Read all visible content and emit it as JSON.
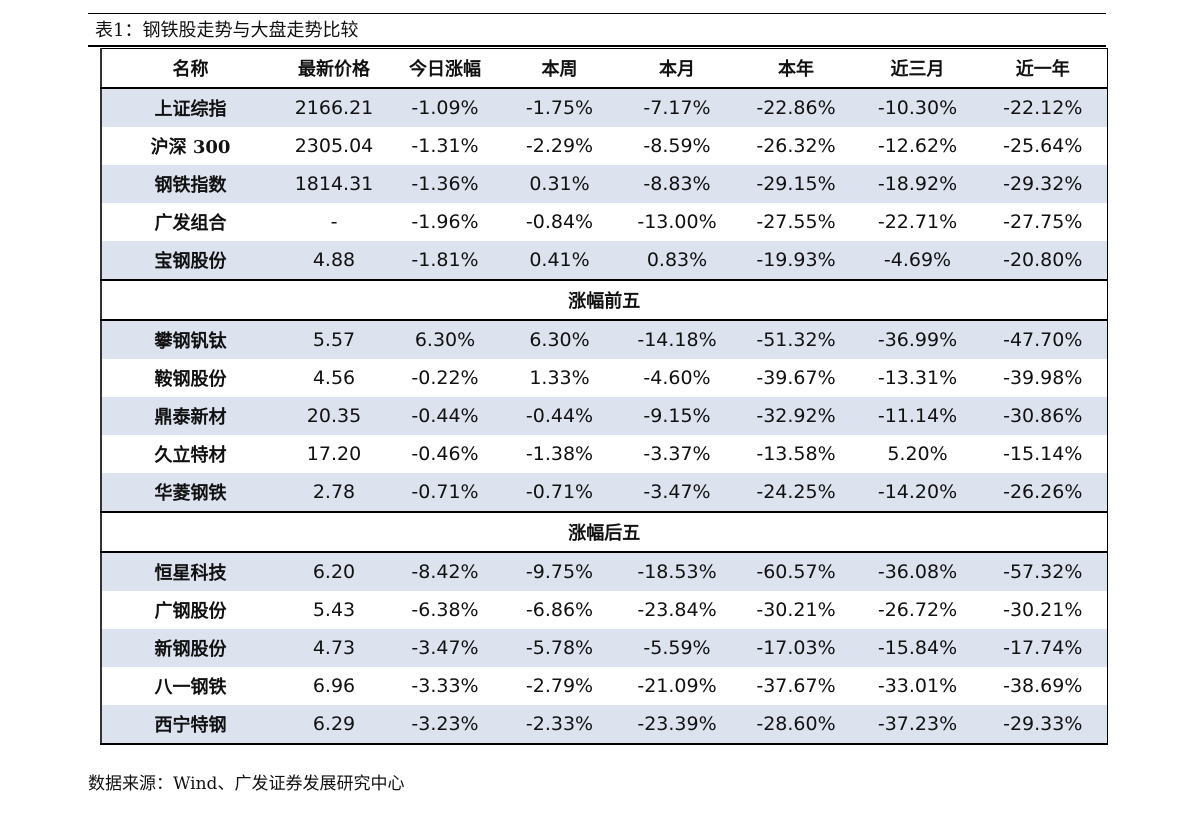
{
  "title": "表1：钢铁股走势与大盘走势比较",
  "table": {
    "headers": [
      "名称",
      "最新价格",
      "今日涨幅",
      "本周",
      "本月",
      "本年",
      "近三月",
      "近一年"
    ],
    "sections": [
      {
        "rows": [
          [
            "上证综指",
            "2166.21",
            "-1.09%",
            "-1.75%",
            "-7.17%",
            "-22.86%",
            "-10.30%",
            "-22.12%"
          ],
          [
            "沪深 300",
            "2305.04",
            "-1.31%",
            "-2.29%",
            "-8.59%",
            "-26.32%",
            "-12.62%",
            "-25.64%"
          ],
          [
            "钢铁指数",
            "1814.31",
            "-1.36%",
            "0.31%",
            "-8.83%",
            "-29.15%",
            "-18.92%",
            "-29.32%"
          ],
          [
            "广发组合",
            "-",
            "-1.96%",
            "-0.84%",
            "-13.00%",
            "-27.55%",
            "-22.71%",
            "-27.75%"
          ],
          [
            "宝钢股份",
            "4.88",
            "-1.81%",
            "0.41%",
            "0.83%",
            "-19.93%",
            "-4.69%",
            "-20.80%"
          ]
        ]
      },
      {
        "label": "涨幅前五",
        "rows": [
          [
            "攀钢钒钛",
            "5.57",
            "6.30%",
            "6.30%",
            "-14.18%",
            "-51.32%",
            "-36.99%",
            "-47.70%"
          ],
          [
            "鞍钢股份",
            "4.56",
            "-0.22%",
            "1.33%",
            "-4.60%",
            "-39.67%",
            "-13.31%",
            "-39.98%"
          ],
          [
            "鼎泰新材",
            "20.35",
            "-0.44%",
            "-0.44%",
            "-9.15%",
            "-32.92%",
            "-11.14%",
            "-30.86%"
          ],
          [
            "久立特材",
            "17.20",
            "-0.46%",
            "-1.38%",
            "-3.37%",
            "-13.58%",
            "5.20%",
            "-15.14%"
          ],
          [
            "华菱钢铁",
            "2.78",
            "-0.71%",
            "-0.71%",
            "-3.47%",
            "-24.25%",
            "-14.20%",
            "-26.26%"
          ]
        ]
      },
      {
        "label": "涨幅后五",
        "rows": [
          [
            "恒星科技",
            "6.20",
            "-8.42%",
            "-9.75%",
            "-18.53%",
            "-60.57%",
            "-36.08%",
            "-57.32%"
          ],
          [
            "广钢股份",
            "5.43",
            "-6.38%",
            "-6.86%",
            "-23.84%",
            "-30.21%",
            "-26.72%",
            "-30.21%"
          ],
          [
            "新钢股份",
            "4.73",
            "-3.47%",
            "-5.78%",
            "-5.59%",
            "-17.03%",
            "-15.84%",
            "-17.74%"
          ],
          [
            "八一钢铁",
            "6.96",
            "-3.33%",
            "-2.79%",
            "-21.09%",
            "-37.67%",
            "-33.01%",
            "-38.69%"
          ],
          [
            "西宁特钢",
            "6.29",
            "-3.23%",
            "-2.33%",
            "-23.39%",
            "-28.60%",
            "-37.23%",
            "-29.33%"
          ]
        ]
      }
    ]
  },
  "source": "数据来源：Wind、广发证券发展研究中心"
}
